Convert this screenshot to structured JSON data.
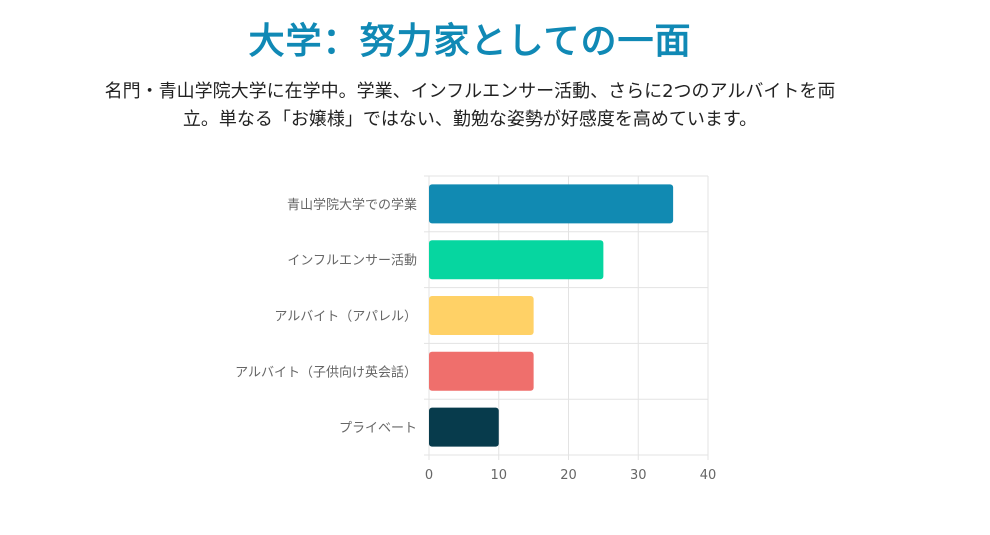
{
  "header": {
    "title": "大学：努力家としての一面",
    "intro": "名門・青山学院大学に在学中。学業、インフルエンサー活動、さらに2つのアルバイトを両立。単なる「お嬢様」ではない、勤勉な姿勢が好感度を高めています。"
  },
  "chart_data": {
    "type": "bar",
    "orientation": "horizontal",
    "categories": [
      "青山学院大学での学業",
      "インフルエンサー活動",
      "アルバイト（アパレル）",
      "アルバイト（子供向け英会話）",
      "プライベート"
    ],
    "values": [
      35,
      25,
      15,
      15,
      10
    ],
    "colors": [
      "#118ab2",
      "#06d6a0",
      "#ffd166",
      "#ef6f6c",
      "#073b4c"
    ],
    "xlim": [
      0,
      40
    ],
    "xticks": [
      "0",
      "10",
      "20",
      "30",
      "40"
    ],
    "grid": true,
    "legend": "none"
  }
}
